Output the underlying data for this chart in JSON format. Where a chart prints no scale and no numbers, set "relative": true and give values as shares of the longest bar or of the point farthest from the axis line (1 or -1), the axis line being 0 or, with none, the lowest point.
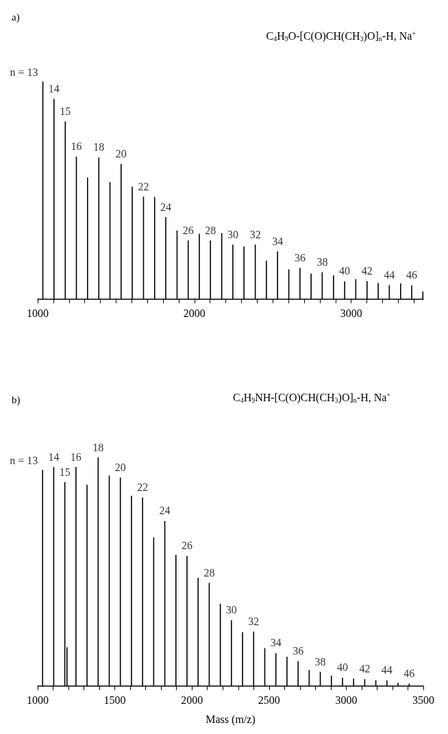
{
  "chart_data": [
    {
      "type": "bar",
      "title": "C$_{4}$H$_{9}$O-[C(O)CH(CH$_{3}$)O]$_{n}$-H, Na$^{+}$",
      "relative": true,
      "color": "#000000",
      "x": [
        1033,
        1104,
        1176,
        1247,
        1318,
        1390,
        1461,
        1532,
        1603,
        1675,
        1746,
        1817,
        1889,
        1960,
        2031,
        2102,
        2174,
        2245,
        2316,
        2388,
        2459,
        2530,
        2602,
        2673,
        2744,
        2815,
        2887,
        2958,
        3029,
        3101,
        3172,
        3243,
        3315,
        3386,
        3457
      ],
      "values": [
        1.0,
        0.92,
        0.817,
        0.655,
        0.559,
        0.651,
        0.538,
        0.621,
        0.517,
        0.471,
        0.47,
        0.377,
        0.316,
        0.27,
        0.3,
        0.27,
        0.304,
        0.251,
        0.242,
        0.251,
        0.178,
        0.219,
        0.137,
        0.144,
        0.118,
        0.124,
        0.109,
        0.082,
        0.092,
        0.083,
        0.075,
        0.065,
        0.072,
        0.063,
        0.036
      ],
      "xlim": [
        1000,
        3460
      ],
      "xticks": [
        1000,
        {
          "value": 1100,
          "label": null
        },
        {
          "value": 1200,
          "label": null
        },
        {
          "value": 1300,
          "label": null
        },
        {
          "value": 1400,
          "label": null
        },
        {
          "value": 1500,
          "label": null
        },
        {
          "value": 1600,
          "label": null
        },
        {
          "value": 1700,
          "label": null
        },
        {
          "value": 1800,
          "label": null
        },
        {
          "value": 1900,
          "label": null
        },
        2000,
        {
          "value": 2100,
          "label": null
        },
        {
          "value": 2200,
          "label": null
        },
        {
          "value": 2300,
          "label": null
        },
        {
          "value": 2400,
          "label": null
        },
        {
          "value": 2500,
          "label": null
        },
        {
          "value": 2600,
          "label": null
        },
        {
          "value": 2700,
          "label": null
        },
        {
          "value": 2800,
          "label": null
        },
        {
          "value": 2900,
          "label": null
        },
        3000,
        {
          "value": 3100,
          "label": null
        },
        {
          "value": 3200,
          "label": null
        },
        {
          "value": 3300,
          "label": null
        },
        {
          "value": 3400,
          "label": null
        }
      ],
      "annotations": [
        "a)",
        {
          "text": "n = 13",
          "x": 1033,
          "y": 1.0
        },
        {
          "text": "14",
          "x": 1104,
          "y": 0.92
        },
        {
          "text": "15",
          "x": 1176,
          "y": 0.817
        },
        {
          "text": "16",
          "x": 1247,
          "y": 0.655
        },
        {
          "text": "18",
          "x": 1390,
          "y": 0.651
        },
        {
          "text": "20",
          "x": 1532,
          "y": 0.621
        },
        {
          "text": "22",
          "x": 1675,
          "y": 0.471
        },
        {
          "text": "24",
          "x": 1817,
          "y": 0.377
        },
        {
          "text": "26",
          "x": 1960,
          "y": 0.27
        },
        {
          "text": "28",
          "x": 2102,
          "y": 0.27
        },
        {
          "text": "30",
          "x": 2245,
          "y": 0.251
        },
        {
          "text": "32",
          "x": 2388,
          "y": 0.251
        },
        {
          "text": "34",
          "x": 2530,
          "y": 0.219
        },
        {
          "text": "36",
          "x": 2673,
          "y": 0.144
        },
        {
          "text": "38",
          "x": 2815,
          "y": 0.124
        },
        {
          "text": "40",
          "x": 2958,
          "y": 0.082
        },
        {
          "text": "42",
          "x": 3101,
          "y": 0.083
        },
        {
          "text": "44",
          "x": 3243,
          "y": 0.065
        },
        {
          "text": "46",
          "x": 3386,
          "y": 0.063
        }
      ]
    },
    {
      "type": "bar",
      "title": "C$_{4}$H$_{9}$NH-[C(O)CH(CH$_{3}$)O]$_{n}$-H, Na$^{+}$",
      "relative": true,
      "color": "#000000",
      "xlabel": "Mass (m/z)",
      "x": [
        1032,
        1104,
        1176,
        1190,
        1248,
        1320,
        1392,
        1464,
        1536,
        1608,
        1680,
        1752,
        1824,
        1896,
        1968,
        2040,
        2112,
        2184,
        2256,
        2328,
        2400,
        2472,
        2544,
        2616,
        2688,
        2760,
        2832,
        2904,
        2976,
        3048,
        3120,
        3192,
        3264,
        3336,
        3408
      ],
      "values": [
        0.945,
        0.958,
        0.892,
        0.17,
        0.958,
        0.88,
        1.0,
        0.921,
        0.912,
        0.832,
        0.824,
        0.65,
        0.722,
        0.574,
        0.569,
        0.473,
        0.451,
        0.36,
        0.288,
        0.236,
        0.238,
        0.166,
        0.144,
        0.128,
        0.109,
        0.07,
        0.062,
        0.046,
        0.037,
        0.033,
        0.03,
        0.026,
        0.025,
        0.014,
        0.011
      ],
      "xlim": [
        1000,
        3500
      ],
      "xticks": [
        1000,
        {
          "value": 1100,
          "label": null
        },
        {
          "value": 1200,
          "label": null
        },
        {
          "value": 1300,
          "label": null
        },
        {
          "value": 1400,
          "label": null
        },
        1500,
        {
          "value": 1600,
          "label": null
        },
        {
          "value": 1700,
          "label": null
        },
        {
          "value": 1800,
          "label": null
        },
        {
          "value": 1900,
          "label": null
        },
        2000,
        {
          "value": 2100,
          "label": null
        },
        {
          "value": 2200,
          "label": null
        },
        {
          "value": 2300,
          "label": null
        },
        {
          "value": 2400,
          "label": null
        },
        2500,
        {
          "value": 2600,
          "label": null
        },
        {
          "value": 2700,
          "label": null
        },
        {
          "value": 2800,
          "label": null
        },
        {
          "value": 2900,
          "label": null
        },
        3000,
        {
          "value": 3100,
          "label": null
        },
        {
          "value": 3200,
          "label": null
        },
        {
          "value": 3300,
          "label": null
        },
        {
          "value": 3400,
          "label": null
        },
        3500
      ],
      "annotations": [
        "b)",
        {
          "text": "n = 13",
          "x": 1032,
          "y": 0.945
        },
        {
          "text": "14",
          "x": 1104,
          "y": 0.958
        },
        {
          "text": "15",
          "x": 1176,
          "y": 0.892
        },
        {
          "text": "16",
          "x": 1248,
          "y": 0.958
        },
        {
          "text": "18",
          "x": 1392,
          "y": 1.0
        },
        {
          "text": "20",
          "x": 1536,
          "y": 0.912
        },
        {
          "text": "22",
          "x": 1680,
          "y": 0.824
        },
        {
          "text": "24",
          "x": 1824,
          "y": 0.722
        },
        {
          "text": "26",
          "x": 1968,
          "y": 0.569
        },
        {
          "text": "28",
          "x": 2112,
          "y": 0.451
        },
        {
          "text": "30",
          "x": 2256,
          "y": 0.288
        },
        {
          "text": "32",
          "x": 2400,
          "y": 0.238
        },
        {
          "text": "34",
          "x": 2544,
          "y": 0.144
        },
        {
          "text": "36",
          "x": 2688,
          "y": 0.109
        },
        {
          "text": "38",
          "x": 2832,
          "y": 0.062
        },
        {
          "text": "40",
          "x": 2976,
          "y": 0.037
        },
        {
          "text": "42",
          "x": 3120,
          "y": 0.03
        },
        {
          "text": "44",
          "x": 3264,
          "y": 0.025
        },
        {
          "text": "46",
          "x": 3408,
          "y": 0.011
        }
      ]
    }
  ]
}
